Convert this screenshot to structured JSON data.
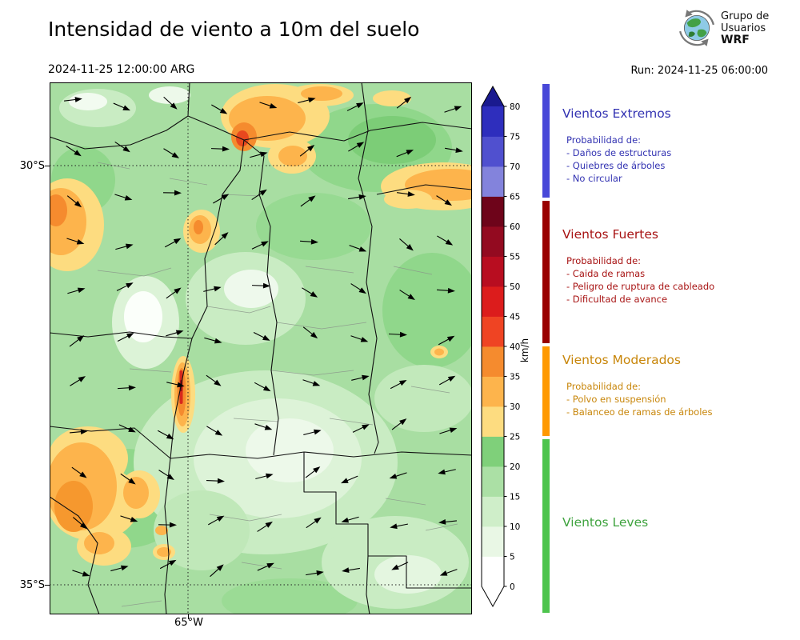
{
  "header": {
    "title": "Intensidad de viento a 10m del suelo",
    "valid_datetime": "2024-11-25 12:00:00 ARG",
    "run_label": "Run: 2024-11-25 06:00:00",
    "logo": {
      "line1": "Grupo de",
      "line2": "Usuarios",
      "line3": "WRF"
    }
  },
  "map": {
    "lat_ticks": [
      "30°S",
      "35°S"
    ],
    "lon_ticks": [
      "65°W"
    ]
  },
  "colorbar": {
    "unit": "km/h",
    "ticks": [
      0,
      5,
      10,
      15,
      20,
      25,
      30,
      35,
      40,
      45,
      50,
      55,
      60,
      65,
      70,
      75,
      80
    ],
    "colors": [
      "#ffffff",
      "#e9f7e5",
      "#cfeec9",
      "#abe0a5",
      "#7fd07a",
      "#fddc80",
      "#fdb44c",
      "#f58b2e",
      "#ef4423",
      "#dc1c1c",
      "#b80d20",
      "#930a20",
      "#6e041a",
      "#8383dc",
      "#5050cf",
      "#2e2ebd"
    ],
    "over_color": "#1a1a8f",
    "under_color": "#ffffff"
  },
  "legend": {
    "sections": [
      {
        "title": "Vientos Extremos",
        "color": "#3333b2",
        "bar_color": "#4848d8",
        "lines": [
          "Probabilidad de:",
          "- Daños de estructuras",
          "- Quiebres de árboles",
          "- No circular"
        ]
      },
      {
        "title": "Vientos Fuertes",
        "color": "#a81414",
        "bar_color": "#990000",
        "lines": [
          "Probabilidad de:",
          "- Caida de ramas",
          "- Peligro de ruptura de cableado",
          "- Dificultad de avance"
        ]
      },
      {
        "title": "Vientos Moderados",
        "color": "#c8860a",
        "bar_color": "#ff9900",
        "lines": [
          "Probabilidad de:",
          "- Polvo en suspensión",
          "- Balanceo de ramas de árboles"
        ]
      },
      {
        "title": "Vientos Leves",
        "color": "#3fa33f",
        "bar_color": "#4dc44d",
        "lines": []
      }
    ]
  }
}
